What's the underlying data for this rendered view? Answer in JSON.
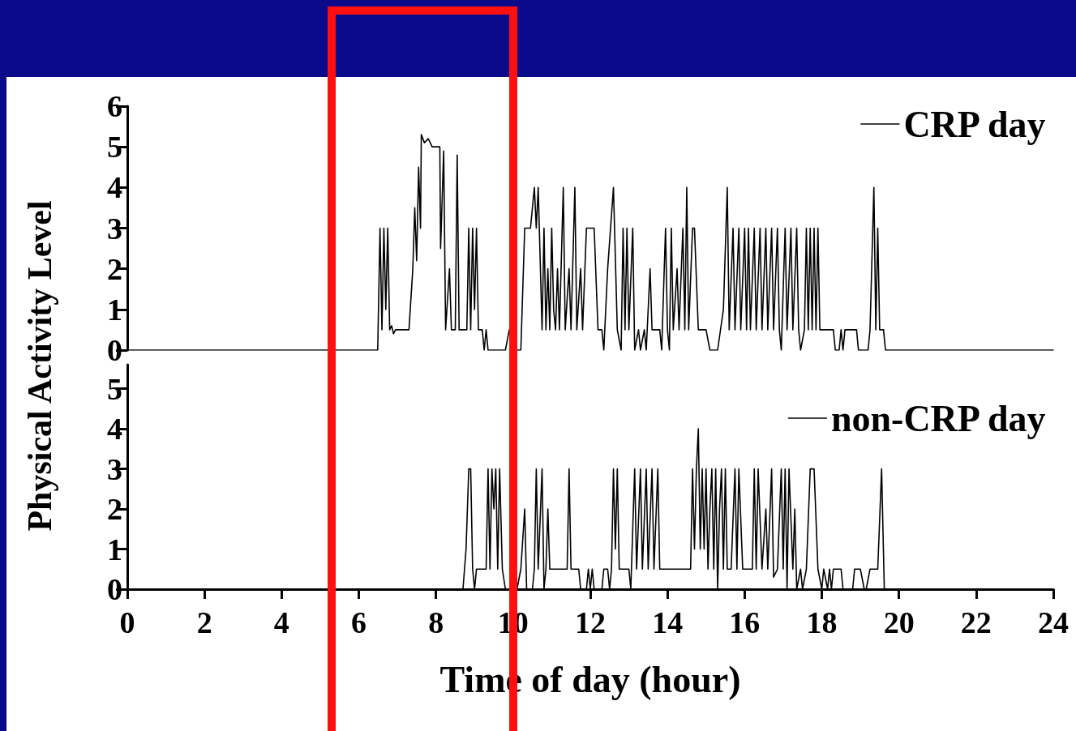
{
  "chart_data": [
    {
      "type": "line",
      "ylabel": "Physical Activity Level",
      "xlim": [
        0,
        24
      ],
      "ylim": [
        0,
        6
      ],
      "yticks": [
        0,
        1,
        2,
        3,
        4,
        5,
        6
      ],
      "tick_labels": "y",
      "ref_lines": [
        {
          "axis": "x",
          "value": 5.3,
          "color": "#ff1010"
        },
        {
          "axis": "x",
          "value": 10.0,
          "color": "#ff1010"
        }
      ],
      "legend": "top right",
      "grid": false,
      "marker": "none",
      "line_style": "solid",
      "series": [
        {
          "name": "CRP day",
          "color": "#000000",
          "x": [
            0,
            6.49,
            6.55,
            6.6,
            6.65,
            6.7,
            6.75,
            6.8,
            6.85,
            6.9,
            6.95,
            7.3,
            7.4,
            7.45,
            7.5,
            7.55,
            7.6,
            7.62,
            7.7,
            7.8,
            7.9,
            8.1,
            8.12,
            8.2,
            8.25,
            8.35,
            8.4,
            8.5,
            8.55,
            8.6,
            8.8,
            8.85,
            8.9,
            8.95,
            9.0,
            9.05,
            9.1,
            9.2,
            9.25,
            9.3,
            9.35,
            9.8,
            9.9,
            10.1,
            10.2,
            10.3,
            10.45,
            10.55,
            10.6,
            10.65,
            10.75,
            10.8,
            10.85,
            10.9,
            10.95,
            11.0,
            11.05,
            11.1,
            11.15,
            11.2,
            11.3,
            11.35,
            11.45,
            11.5,
            11.6,
            11.65,
            11.75,
            11.8,
            11.9,
            12.1,
            12.2,
            12.3,
            12.35,
            12.45,
            12.6,
            12.7,
            12.8,
            12.85,
            12.9,
            12.95,
            13.0,
            13.1,
            13.15,
            13.25,
            13.3,
            13.4,
            13.45,
            13.55,
            13.6,
            13.8,
            13.85,
            13.95,
            14.0,
            14.05,
            14.1,
            14.15,
            14.25,
            14.3,
            14.4,
            14.45,
            14.5,
            14.55,
            14.65,
            14.7,
            14.8,
            15.0,
            15.1,
            15.3,
            15.45,
            15.55,
            15.6,
            15.7,
            15.75,
            15.85,
            15.9,
            16.0,
            16.05,
            16.1,
            16.15,
            16.25,
            16.3,
            16.4,
            16.45,
            16.55,
            16.6,
            16.7,
            16.75,
            16.85,
            16.9,
            16.95,
            17.05,
            17.1,
            17.2,
            17.25,
            17.35,
            17.4,
            17.45,
            17.55,
            17.6,
            17.65,
            17.7,
            17.75,
            17.8,
            17.85,
            17.9,
            17.95,
            18.3,
            18.35,
            18.45,
            18.5,
            18.55,
            18.6,
            18.9,
            18.95,
            19.2,
            19.25,
            19.35,
            19.4,
            19.45,
            19.5,
            19.6,
            19.65,
            24
          ],
          "values": [
            0,
            0,
            3,
            0.5,
            3,
            1,
            3,
            0.5,
            0.6,
            0.4,
            0.5,
            0.5,
            2,
            3.5,
            2.2,
            4.5,
            3,
            5.3,
            5.1,
            5.2,
            5.0,
            5.0,
            2.5,
            4.9,
            0.5,
            2,
            0.5,
            0.5,
            4.8,
            0.5,
            0.5,
            3,
            0.5,
            3,
            1,
            3,
            0.5,
            0.5,
            0,
            0.5,
            0,
            0,
            0.5,
            0,
            0,
            3,
            3,
            4,
            3,
            4,
            0.5,
            3,
            0.5,
            2,
            0.5,
            3,
            1,
            0.5,
            2,
            0.5,
            4,
            0.5,
            2,
            0.5,
            4,
            0.5,
            2,
            0.5,
            3,
            3,
            0.5,
            0.5,
            0,
            2,
            4,
            0.5,
            0,
            3,
            0.5,
            3,
            0.5,
            3,
            0,
            0.5,
            0,
            0.5,
            0,
            2,
            0.5,
            0.5,
            0,
            3,
            0.5,
            0,
            3,
            0.5,
            2,
            0.5,
            3,
            0.5,
            4,
            0.5,
            3,
            3,
            0.5,
            0.5,
            0,
            0,
            1,
            4,
            0.5,
            3,
            0.5,
            3,
            0.5,
            3,
            0.5,
            3,
            0.5,
            3,
            0.5,
            3,
            0.5,
            3,
            0.5,
            3,
            0.5,
            3,
            0.5,
            0,
            3,
            0.5,
            3,
            0.5,
            3,
            0.5,
            0,
            0.5,
            3,
            0.5,
            3,
            0.5,
            3,
            0.5,
            3,
            0.5,
            0.5,
            0,
            0,
            0.5,
            0,
            0.5,
            0.5,
            0,
            0,
            0.5,
            4,
            0.5,
            3,
            0.5,
            0.5,
            0,
            0
          ]
        }
      ]
    },
    {
      "type": "line",
      "xlabel": "Time of day (hour)",
      "xlim": [
        0,
        24
      ],
      "xticks": [
        0,
        2,
        4,
        6,
        8,
        10,
        12,
        14,
        16,
        18,
        20,
        22,
        24
      ],
      "ylim": [
        0,
        5.6
      ],
      "yticks": [
        0,
        1,
        2,
        3,
        4,
        5
      ],
      "ref_lines": [
        {
          "axis": "x",
          "value": 5.3,
          "color": "#ff1010"
        },
        {
          "axis": "x",
          "value": 10.0,
          "color": "#ff1010"
        }
      ],
      "legend": "top right",
      "grid": false,
      "marker": "none",
      "line_style": "solid",
      "series": [
        {
          "name": "non-CRP day",
          "color": "#000000",
          "x": [
            0,
            8.7,
            8.78,
            8.85,
            8.9,
            8.95,
            9.0,
            9.05,
            9.3,
            9.35,
            9.4,
            9.45,
            9.5,
            9.55,
            9.6,
            9.65,
            9.72,
            9.8,
            10.1,
            10.2,
            10.3,
            10.35,
            10.5,
            10.55,
            10.6,
            10.65,
            10.75,
            10.8,
            10.85,
            10.9,
            10.95,
            11.4,
            11.45,
            11.5,
            11.7,
            11.75,
            11.9,
            11.95,
            12.0,
            12.05,
            12.1,
            12.3,
            12.35,
            12.45,
            12.5,
            12.55,
            12.6,
            12.65,
            12.7,
            12.75,
            13.0,
            13.05,
            13.15,
            13.2,
            13.3,
            13.35,
            13.45,
            13.5,
            13.6,
            13.65,
            13.75,
            13.8,
            14.6,
            14.65,
            14.7,
            14.75,
            14.8,
            14.85,
            14.9,
            14.95,
            15.0,
            15.05,
            15.1,
            15.15,
            15.2,
            15.25,
            15.3,
            15.35,
            15.4,
            15.45,
            15.5,
            15.55,
            15.65,
            15.75,
            15.8,
            15.85,
            15.95,
            16.2,
            16.25,
            16.3,
            16.35,
            16.45,
            16.55,
            16.6,
            16.7,
            16.75,
            16.85,
            16.95,
            17.0,
            17.05,
            17.1,
            17.15,
            17.25,
            17.3,
            17.35,
            17.45,
            17.5,
            17.6,
            17.7,
            17.8,
            17.9,
            18.0,
            18.05,
            18.15,
            18.2,
            18.25,
            18.3,
            18.5,
            18.55,
            18.8,
            18.85,
            19.0,
            19.1,
            19.15,
            19.25,
            19.45,
            19.55,
            19.62,
            24
          ],
          "values": [
            0,
            0,
            1,
            3,
            3,
            0.5,
            0,
            0.5,
            0.5,
            3,
            0.5,
            3,
            2,
            3,
            0.5,
            3,
            0.5,
            0,
            0,
            0.5,
            2,
            0,
            0,
            0.5,
            3,
            0.5,
            3,
            0,
            0.5,
            2,
            0.5,
            0.5,
            3,
            0.5,
            0.5,
            0,
            0,
            0.5,
            0,
            0.5,
            0,
            0,
            0.5,
            0.5,
            0,
            0.5,
            3,
            1,
            3,
            0.5,
            0.5,
            0,
            3,
            0.5,
            3,
            0.5,
            3,
            0.5,
            3,
            0.5,
            3,
            0.5,
            0.5,
            3,
            1,
            3,
            4,
            1,
            3,
            1,
            3,
            0.5,
            2,
            3,
            0.5,
            3,
            0,
            2,
            3,
            0.5,
            3,
            0.5,
            0.5,
            3,
            0.5,
            3,
            0.5,
            0.5,
            3,
            0.5,
            3,
            0.5,
            2,
            0.5,
            3,
            0.3,
            0.5,
            3,
            0.5,
            3,
            0,
            3,
            0.5,
            2,
            0,
            0.5,
            0,
            0.5,
            3,
            3,
            0.5,
            0,
            0.5,
            0,
            0.5,
            0,
            0.5,
            0.5,
            0,
            0,
            0.5,
            0.5,
            0,
            0,
            0.5,
            0.5,
            3,
            0,
            0
          ]
        }
      ]
    }
  ]
}
